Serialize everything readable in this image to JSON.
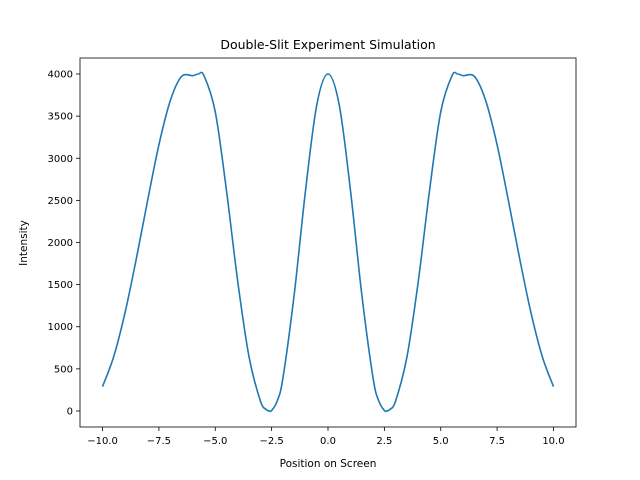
{
  "chart_data": {
    "type": "line",
    "title": "Double-Slit Experiment Simulation",
    "xlabel": "Position on Screen",
    "ylabel": "Intensity",
    "xlim": [
      -11,
      11
    ],
    "ylim": [
      -190,
      4190
    ],
    "xticks": [
      -10.0,
      -7.5,
      -5.0,
      -2.5,
      0.0,
      2.5,
      5.0,
      7.5,
      10.0
    ],
    "xtick_labels": [
      "−10.0",
      "−7.5",
      "−5.0",
      "−2.5",
      "0.0",
      "2.5",
      "5.0",
      "7.5",
      "10.0"
    ],
    "yticks": [
      0,
      500,
      1000,
      1500,
      2000,
      2500,
      3000,
      3500,
      4000
    ],
    "ytick_labels": [
      "0",
      "500",
      "1000",
      "1500",
      "2000",
      "2500",
      "3000",
      "3500",
      "4000"
    ],
    "grid": false,
    "line_color": "#1f77b4",
    "series": [
      {
        "x": [
          -10.0,
          -9.5,
          -9.0,
          -8.5,
          -8.0,
          -7.5,
          -7.0,
          -6.5,
          -6.0,
          -5.75,
          -5.5,
          -5.0,
          -4.5,
          -4.0,
          -3.5,
          -3.0,
          -2.75,
          -2.6,
          -2.5,
          -2.25,
          -2.0,
          -1.5,
          -1.0,
          -0.5,
          0.0,
          0.5,
          1.0,
          1.5,
          2.0,
          2.25,
          2.5,
          2.6,
          2.75,
          3.0,
          3.5,
          4.0,
          4.5,
          5.0,
          5.5,
          5.75,
          6.0,
          6.5,
          7.0,
          7.5,
          8.0,
          8.5,
          9.0,
          9.5,
          10.0
        ],
        "y": [
          290,
          650,
          1170,
          1810,
          2500,
          3160,
          3680,
          3970,
          3980,
          4000,
          3980,
          3550,
          2610,
          1530,
          640,
          120,
          20,
          0,
          5,
          120,
          390,
          1380,
          2610,
          3630,
          4000,
          3630,
          2610,
          1380,
          390,
          120,
          5,
          0,
          20,
          120,
          640,
          1530,
          2610,
          3550,
          3980,
          4000,
          3980,
          3970,
          3680,
          3160,
          2500,
          1810,
          1170,
          650,
          290
        ]
      }
    ]
  }
}
